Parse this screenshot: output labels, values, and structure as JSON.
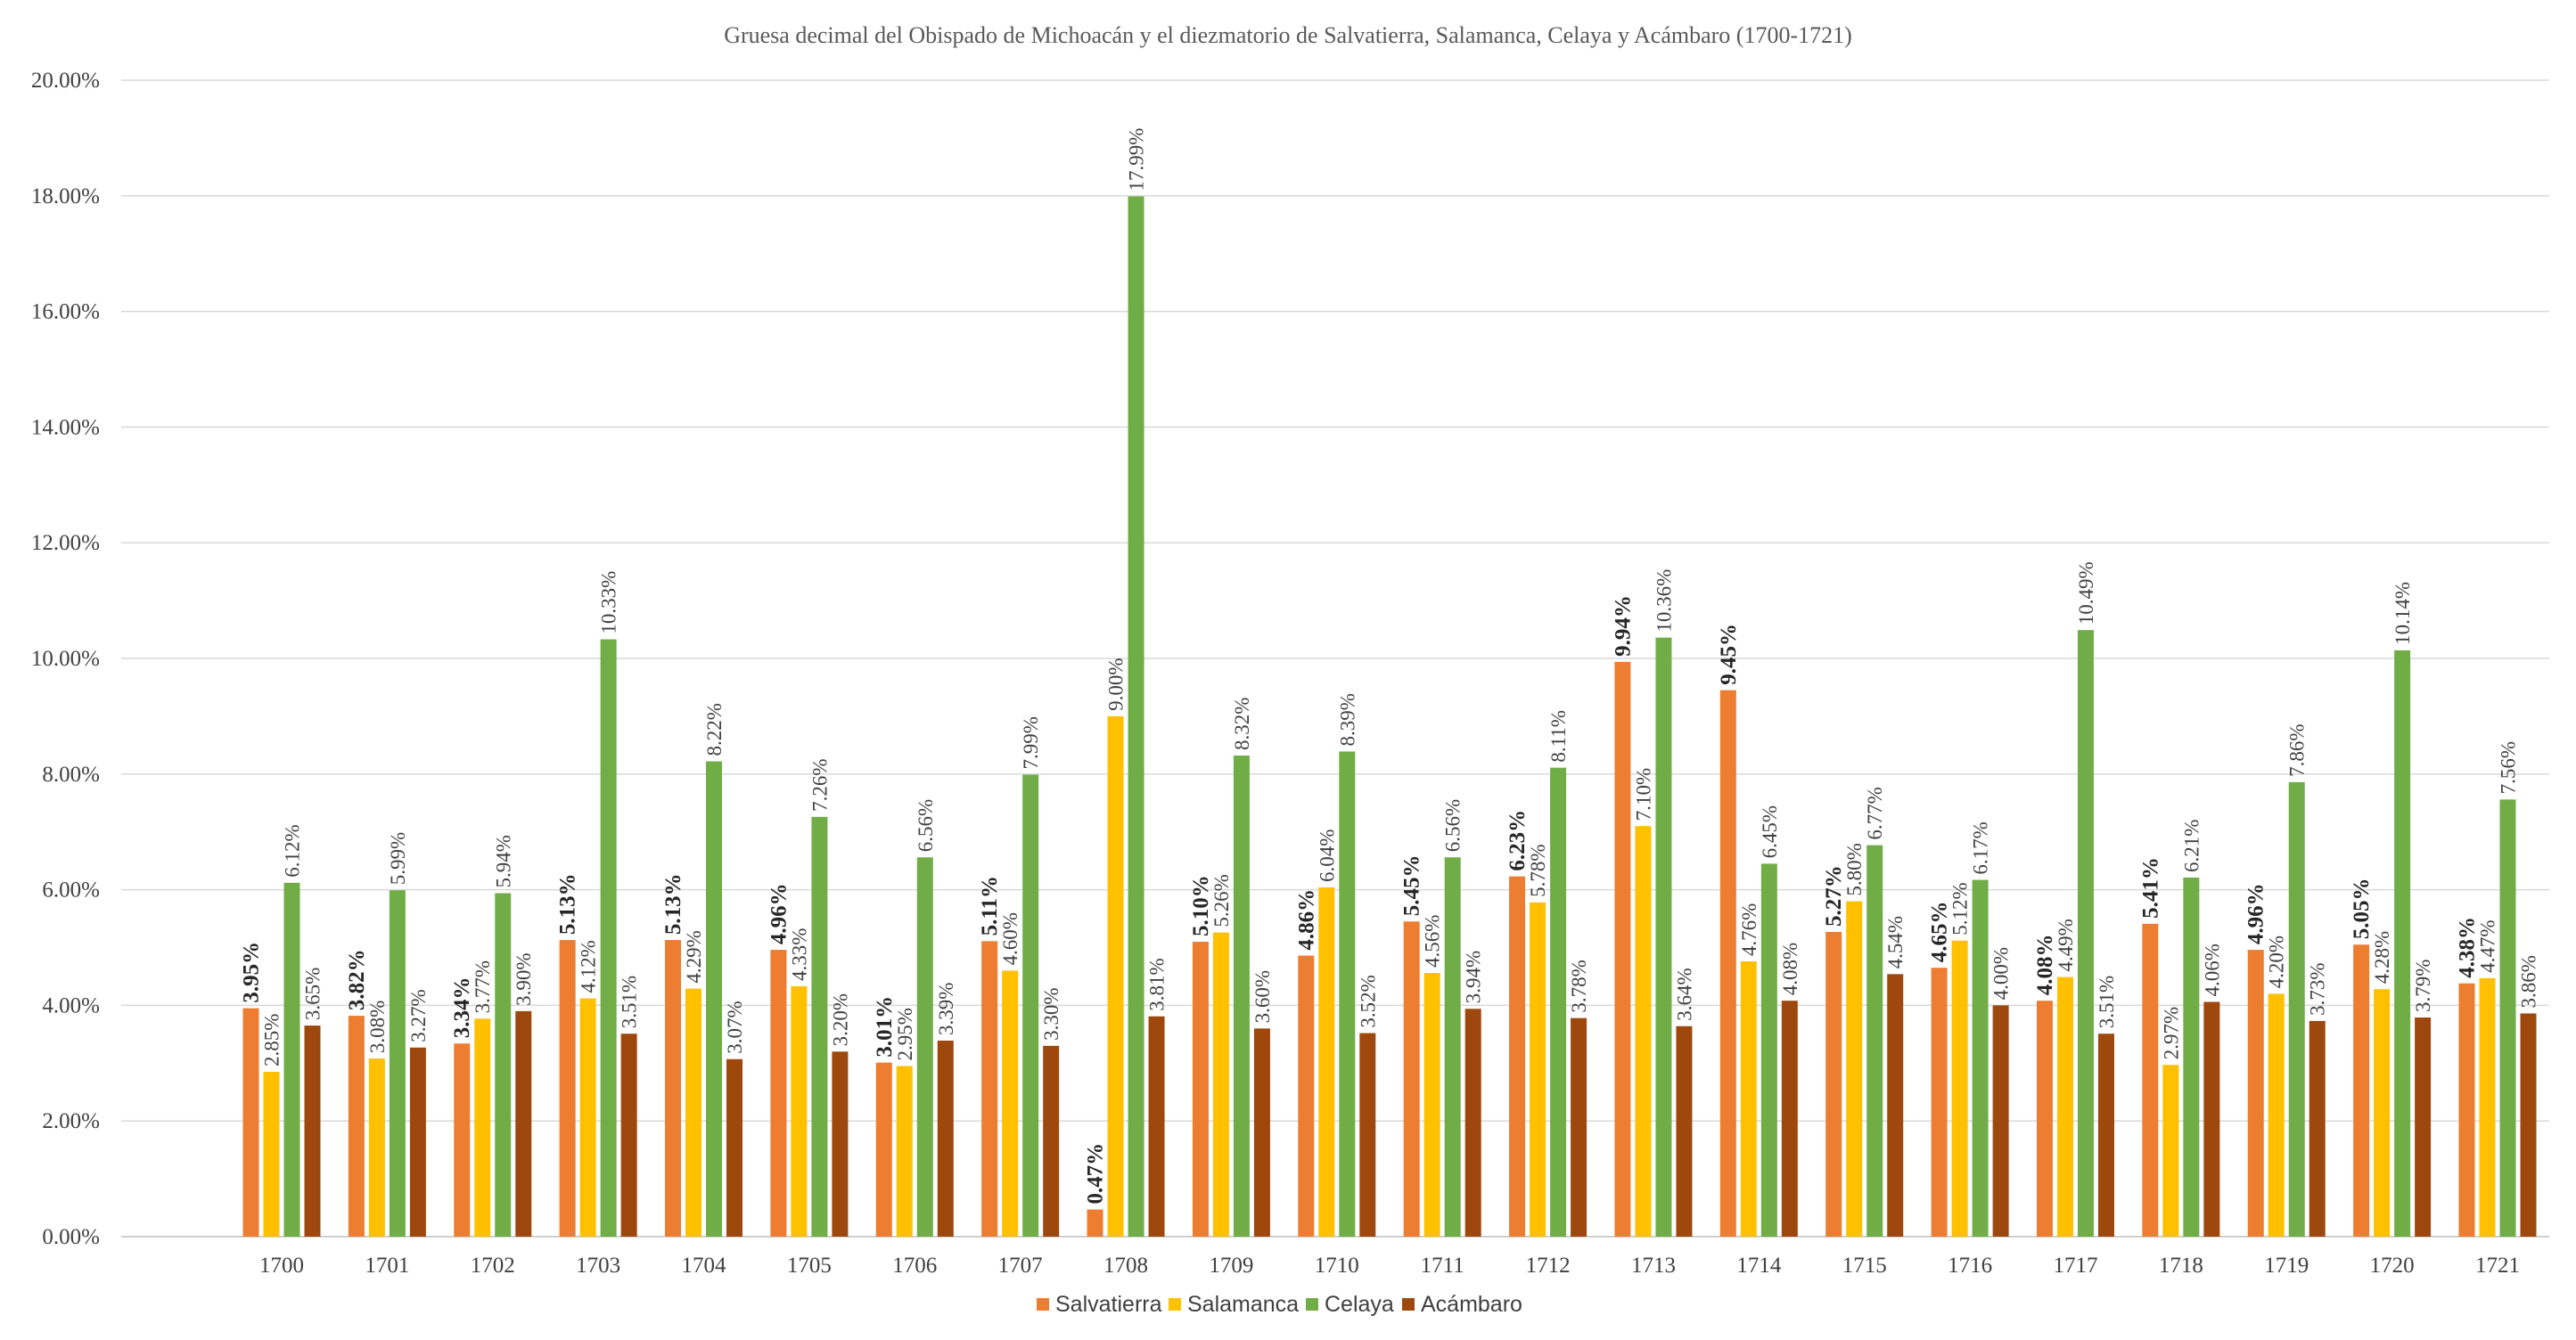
{
  "chart_data": {
    "type": "bar",
    "title": "Gruesa decimal del Obispado de Michoacán y el diezmatorio de Salvatierra, Salamanca, Celaya y Acámbaro (1700-1721)",
    "xlabel": "",
    "ylabel": "",
    "ylim": [
      0,
      20
    ],
    "y_tick_labels": [
      "0.00%",
      "2.00%",
      "4.00%",
      "6.00%",
      "8.00%",
      "10.00%",
      "12.00%",
      "14.00%",
      "16.00%",
      "18.00%",
      "20.00%"
    ],
    "categories": [
      "1700",
      "1701",
      "1702",
      "1703",
      "1704",
      "1705",
      "1706",
      "1707",
      "1708",
      "1709",
      "1710",
      "1711",
      "1712",
      "1713",
      "1714",
      "1715",
      "1716",
      "1717",
      "1718",
      "1719",
      "1720",
      "1721"
    ],
    "grid": true,
    "legend_position": "bottom",
    "series": [
      {
        "name": "Salvatierra",
        "color": "#ED7D31",
        "bold_labels": true,
        "values": [
          3.95,
          3.82,
          3.34,
          5.13,
          5.13,
          4.96,
          3.01,
          5.11,
          0.47,
          5.1,
          4.86,
          5.45,
          6.23,
          9.94,
          9.45,
          5.27,
          4.65,
          4.08,
          5.41,
          4.96,
          5.05,
          4.38
        ],
        "labels": [
          "3.95%",
          "3.82%",
          "3.34%",
          "5.13%",
          "5.13%",
          "4.96%",
          "3.01%",
          "5.11%",
          "0.47%",
          "5.10%",
          "4.86%",
          "5.45%",
          "6.23%",
          "9.94%",
          "9.45%",
          "5.27%",
          "4.65%",
          "4.08%",
          "5.41%",
          "4.96%",
          "5.05%",
          "4.38%"
        ]
      },
      {
        "name": "Salamanca",
        "color": "#FFC000",
        "bold_labels": false,
        "values": [
          2.85,
          3.08,
          3.77,
          4.12,
          4.29,
          4.33,
          2.95,
          4.6,
          9.0,
          5.26,
          6.04,
          4.56,
          5.78,
          7.1,
          4.76,
          5.8,
          5.12,
          4.49,
          2.97,
          4.2,
          4.28,
          4.47
        ],
        "labels": [
          "2.85%",
          "3.08%",
          "3.77%",
          "4.12%",
          "4.29%",
          "4.33%",
          "2.95%",
          "4.60%",
          "9.00%",
          "5.26%",
          "6.04%",
          "4.56%",
          "5.78%",
          "7.10%",
          "4.76%",
          "5.80%",
          "5.12%",
          "4.49%",
          "2.97%",
          "4.20%",
          "4.28%",
          "4.47%"
        ]
      },
      {
        "name": "Celaya",
        "color": "#70AD47",
        "bold_labels": false,
        "values": [
          6.12,
          5.99,
          5.94,
          10.33,
          8.22,
          7.26,
          6.56,
          7.99,
          17.99,
          8.32,
          8.39,
          6.56,
          8.11,
          10.36,
          6.45,
          6.77,
          6.17,
          10.49,
          6.21,
          7.86,
          10.14,
          7.56
        ],
        "labels": [
          "6.12%",
          "5.99%",
          "5.94%",
          "10.33%",
          "8.22%",
          "7.26%",
          "6.56%",
          "7.99%",
          "17.99%",
          "8.32%",
          "8.39%",
          "6.56%",
          "8.11%",
          "10.36%",
          "6.45%",
          "6.77%",
          "6.17%",
          "10.49%",
          "6.21%",
          "7.86%",
          "10.14%",
          "7.56%"
        ]
      },
      {
        "name": "Acámbaro",
        "color": "#9E480E",
        "bold_labels": false,
        "values": [
          3.65,
          3.27,
          3.9,
          3.51,
          3.07,
          3.2,
          3.39,
          3.3,
          3.81,
          3.6,
          3.52,
          3.94,
          3.78,
          3.64,
          4.08,
          4.54,
          4.0,
          3.51,
          4.06,
          3.73,
          3.79,
          3.86
        ],
        "labels": [
          "3.65%",
          "3.27%",
          "3.90%",
          "3.51%",
          "3.07%",
          "3.20%",
          "3.39%",
          "3.30%",
          "3.81%",
          "3.60%",
          "3.52%",
          "3.94%",
          "3.78%",
          "3.64%",
          "4.08%",
          "4.54%",
          "4.00%",
          "3.51%",
          "4.06%",
          "3.73%",
          "3.79%",
          "3.86%"
        ]
      }
    ]
  }
}
